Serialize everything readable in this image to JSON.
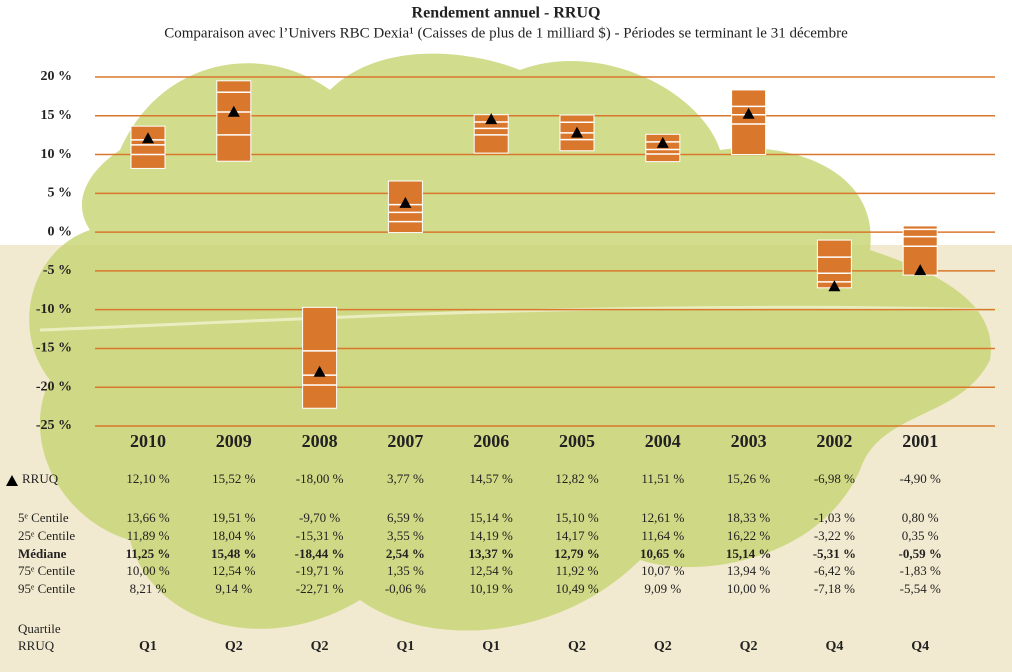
{
  "chart_data": {
    "type": "floating_box",
    "title": "Rendement annuel - RRUQ",
    "subtitle": "Comparaison avec l’Univers RBC Dexia¹ (Caisses de plus de 1 milliard $) - Périodes se terminant le 31 décembre",
    "categories": [
      "2010",
      "2009",
      "2008",
      "2007",
      "2006",
      "2005",
      "2004",
      "2003",
      "2002",
      "2001"
    ],
    "ylim": [
      -25,
      20
    ],
    "yticks": [
      {
        "value": -25,
        "label": "-25 %"
      },
      {
        "value": -20,
        "label": "-20 %"
      },
      {
        "value": -15,
        "label": "-15 %"
      },
      {
        "value": -10,
        "label": "-10 %"
      },
      {
        "value": -5,
        "label": "-5 %"
      },
      {
        "value": 0,
        "label": "0 %"
      },
      {
        "value": 5,
        "label": "5 %"
      },
      {
        "value": 10,
        "label": "10 %"
      },
      {
        "value": 15,
        "label": "15 %"
      },
      {
        "value": 20,
        "label": "20 %"
      }
    ],
    "grid": true,
    "grid_color": "#d9782d",
    "box_color": "#d9782d",
    "series": [
      {
        "name": "RRUQ",
        "color": "#000000",
        "values": [
          12.1,
          15.52,
          -18.0,
          3.77,
          14.57,
          12.82,
          11.51,
          15.26,
          -6.98,
          -4.9
        ],
        "value_labels": [
          "12,10 %",
          "15,52 %",
          "-18,00 %",
          "3,77 %",
          "14,57 %",
          "12,82 %",
          "11,51 %",
          "15,26 %",
          "-6,98 %",
          "-4,90 %"
        ]
      },
      {
        "name": "5ᵉ Centile",
        "values": [
          13.66,
          19.51,
          -9.7,
          6.59,
          15.14,
          15.1,
          12.61,
          18.33,
          -1.03,
          0.8
        ],
        "value_labels": [
          "13,66 %",
          "19,51 %",
          "-9,70 %",
          "6,59 %",
          "15,14 %",
          "15,10 %",
          "12,61 %",
          "18,33 %",
          "-1,03 %",
          "0,80 %"
        ]
      },
      {
        "name": "25ᵉ Centile",
        "values": [
          11.89,
          18.04,
          -15.31,
          3.55,
          14.19,
          14.17,
          11.64,
          16.22,
          -3.22,
          0.35
        ],
        "value_labels": [
          "11,89 %",
          "18,04 %",
          "-15,31 %",
          "3,55 %",
          "14,19 %",
          "14,17 %",
          "11,64 %",
          "16,22 %",
          "-3,22 %",
          "0,35 %"
        ]
      },
      {
        "name": "Médiane",
        "values": [
          11.25,
          15.48,
          -18.44,
          2.54,
          13.37,
          12.79,
          10.65,
          15.14,
          -5.31,
          -0.59
        ],
        "value_labels": [
          "11,25 %",
          "15,48 %",
          "-18,44 %",
          "2,54 %",
          "13,37 %",
          "12,79 %",
          "10,65 %",
          "15,14 %",
          "-5,31 %",
          "-0,59 %"
        ]
      },
      {
        "name": "75ᵉ Centile",
        "values": [
          10.0,
          12.54,
          -19.71,
          1.35,
          12.54,
          11.92,
          10.07,
          13.94,
          -6.42,
          -1.83
        ],
        "value_labels": [
          "10,00 %",
          "12,54 %",
          "-19,71 %",
          "1,35 %",
          "12,54 %",
          "11,92 %",
          "10,07 %",
          "13,94 %",
          "-6,42 %",
          "-1,83 %"
        ]
      },
      {
        "name": "95ᵉ Centile",
        "values": [
          8.21,
          9.14,
          -22.71,
          -0.06,
          10.19,
          10.49,
          9.09,
          10.0,
          -7.18,
          -5.54
        ],
        "value_labels": [
          "8,21 %",
          "9,14 %",
          "-22,71 %",
          "-0,06 %",
          "10,19 %",
          "10,49 %",
          "9,09 %",
          "10,00 %",
          "-7,18 %",
          "-5,54 %"
        ]
      }
    ],
    "quartile_label": [
      "Quartile",
      "RRUQ"
    ],
    "quartiles": [
      "Q1",
      "Q2",
      "Q2",
      "Q1",
      "Q1",
      "Q2",
      "Q2",
      "Q2",
      "Q4",
      "Q4"
    ],
    "quartile_colors": {
      "Q1": "#8db53c",
      "Q2": "#8db53c",
      "Q3": "#d12d2d",
      "Q4": "#d12d2d"
    }
  }
}
